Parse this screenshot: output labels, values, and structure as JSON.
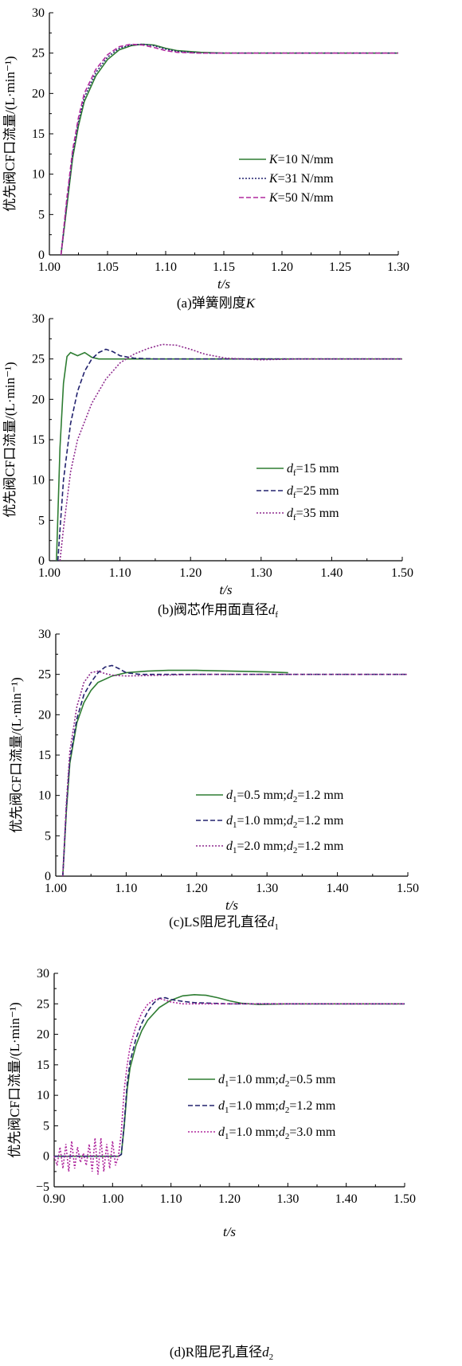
{
  "chart_data": [
    {
      "type": "line",
      "caption": "(a)弹簧刚度K",
      "xlabel": "t/s",
      "ylabel": "优先阀CF口流量/(L·min⁻¹)",
      "xlim": [
        1.0,
        1.3
      ],
      "ylim": [
        0,
        30
      ],
      "xticks": [
        "1.00",
        "1.05",
        "1.10",
        "1.15",
        "1.20",
        "1.25",
        "1.30"
      ],
      "yticks": [
        "0",
        "5",
        "10",
        "15",
        "20",
        "25",
        "30"
      ],
      "legend_position": "center-right",
      "series": [
        {
          "name": "K=10 N/mm",
          "color": "#2e7d32",
          "style": "solid",
          "x": [
            1.01,
            1.015,
            1.02,
            1.025,
            1.03,
            1.04,
            1.05,
            1.06,
            1.07,
            1.08,
            1.09,
            1.1,
            1.11,
            1.13,
            1.15,
            1.2,
            1.3
          ],
          "y": [
            0,
            6,
            12,
            16,
            19,
            22.2,
            24.2,
            25.4,
            25.9,
            26.1,
            26.0,
            25.6,
            25.3,
            25.1,
            25.0,
            25.0,
            25.0
          ]
        },
        {
          "name": "K=31 N/mm",
          "color": "#22226e",
          "style": "dotted",
          "x": [
            1.01,
            1.015,
            1.02,
            1.025,
            1.03,
            1.04,
            1.05,
            1.06,
            1.07,
            1.08,
            1.09,
            1.1,
            1.11,
            1.13,
            1.15,
            1.2,
            1.3
          ],
          "y": [
            0,
            6.5,
            12.5,
            16.5,
            19.5,
            22.6,
            24.5,
            25.6,
            26.0,
            26.1,
            25.9,
            25.5,
            25.2,
            25.0,
            25.0,
            25.0,
            25.0
          ]
        },
        {
          "name": "K=50 N/mm",
          "color": "#b0299e",
          "style": "dashed",
          "x": [
            1.01,
            1.015,
            1.02,
            1.025,
            1.03,
            1.04,
            1.05,
            1.06,
            1.07,
            1.08,
            1.09,
            1.1,
            1.11,
            1.13,
            1.15,
            1.2,
            1.3
          ],
          "y": [
            0,
            7,
            13,
            17,
            20,
            23,
            24.8,
            25.8,
            26.1,
            26.0,
            25.7,
            25.3,
            25.1,
            25.0,
            25.0,
            25.0,
            25.0
          ]
        }
      ]
    },
    {
      "type": "line",
      "caption": "(b)阀芯作用面直径df",
      "xlabel": "t/s",
      "ylabel": "优先阀CF口流量/(L·min⁻¹)",
      "xlim": [
        1.0,
        1.5
      ],
      "ylim": [
        0,
        30
      ],
      "xticks": [
        "1.00",
        "1.10",
        "1.20",
        "1.30",
        "1.40",
        "1.50"
      ],
      "yticks": [
        "0",
        "5",
        "10",
        "15",
        "20",
        "25",
        "30"
      ],
      "legend_position": "center-right",
      "series": [
        {
          "name": "df=15 mm",
          "color": "#2e7d32",
          "style": "solid",
          "x": [
            1.01,
            1.015,
            1.02,
            1.025,
            1.03,
            1.04,
            1.05,
            1.06,
            1.07,
            1.1,
            1.2,
            1.5
          ],
          "y": [
            0,
            14,
            22,
            25.3,
            25.8,
            25.4,
            25.8,
            25.2,
            25.0,
            25.0,
            25.0,
            25.0
          ]
        },
        {
          "name": "df=25 mm",
          "color": "#22226e",
          "style": "dashed",
          "x": [
            1.012,
            1.02,
            1.03,
            1.04,
            1.05,
            1.06,
            1.07,
            1.08,
            1.09,
            1.1,
            1.12,
            1.15,
            1.2,
            1.5
          ],
          "y": [
            0,
            10,
            17,
            21,
            23.5,
            25,
            25.8,
            26.2,
            25.9,
            25.4,
            25.1,
            25.0,
            25.0,
            25.0
          ]
        },
        {
          "name": "df=35 mm",
          "color": "#8e2a8e",
          "style": "dotted",
          "x": [
            1.015,
            1.02,
            1.03,
            1.04,
            1.06,
            1.08,
            1.1,
            1.12,
            1.14,
            1.16,
            1.18,
            1.2,
            1.22,
            1.25,
            1.3,
            1.35,
            1.5
          ],
          "y": [
            0,
            4,
            11,
            15,
            19.5,
            22.5,
            24.5,
            25.6,
            26.3,
            26.8,
            26.7,
            26.2,
            25.6,
            25.1,
            24.9,
            25.0,
            25.0
          ]
        }
      ]
    },
    {
      "type": "line",
      "caption": "(c)LS阻尼孔直径d1",
      "xlabel": "t/s",
      "ylabel": "优先阀CF口流量/(L·min⁻¹)",
      "xlim": [
        1.0,
        1.5
      ],
      "ylim": [
        0,
        30
      ],
      "xticks": [
        "1.00",
        "1.10",
        "1.20",
        "1.30",
        "1.40",
        "1.50"
      ],
      "yticks": [
        "0",
        "5",
        "10",
        "15",
        "20",
        "25",
        "30"
      ],
      "legend_position": "bottom-right",
      "series": [
        {
          "name": "d1=0.5 mm;d2=1.2 mm",
          "color": "#2e7d32",
          "style": "solid",
          "x": [
            1.01,
            1.015,
            1.02,
            1.03,
            1.04,
            1.05,
            1.06,
            1.08,
            1.1,
            1.13,
            1.16,
            1.2,
            1.25,
            1.3,
            1.33
          ],
          "y": [
            0,
            8,
            14,
            19,
            21.5,
            23,
            24,
            24.8,
            25.2,
            25.4,
            25.5,
            25.5,
            25.4,
            25.3,
            25.2
          ]
        },
        {
          "name": "d1=1.0 mm;d2=1.2 mm",
          "color": "#22226e",
          "style": "dashed",
          "x": [
            1.01,
            1.015,
            1.02,
            1.03,
            1.04,
            1.05,
            1.06,
            1.07,
            1.08,
            1.09,
            1.1,
            1.12,
            1.15,
            1.2,
            1.5
          ],
          "y": [
            0,
            8.5,
            14.5,
            19.5,
            22.5,
            24,
            25.2,
            25.9,
            26.1,
            25.7,
            25.2,
            25.0,
            25.0,
            25.0,
            25.0
          ]
        },
        {
          "name": "d1=2.0 mm;d2=1.2 mm",
          "color": "#8e2a8e",
          "style": "dotted",
          "x": [
            1.01,
            1.015,
            1.02,
            1.03,
            1.04,
            1.05,
            1.06,
            1.07,
            1.08,
            1.1,
            1.15,
            1.2,
            1.5
          ],
          "y": [
            0,
            9,
            15.5,
            21,
            24,
            25.2,
            25.4,
            25.1,
            24.9,
            24.8,
            24.9,
            25.0,
            25.0
          ]
        }
      ]
    },
    {
      "type": "line",
      "caption": "(d)R阻尼孔直径d2",
      "xlabel": "t/s",
      "ylabel": "优先阀CF口流量/(L·min⁻¹)",
      "xlim": [
        0.9,
        1.5
      ],
      "ylim": [
        -5,
        30
      ],
      "xticks": [
        "0.90",
        "1.00",
        "1.10",
        "1.20",
        "1.30",
        "1.40",
        "1.50"
      ],
      "yticks": [
        "−5",
        "0",
        "5",
        "10",
        "15",
        "20",
        "25",
        "30"
      ],
      "legend_position": "center-right",
      "series": [
        {
          "name": "d1=1.0 mm;d2=0.5 mm",
          "color": "#2e7d32",
          "style": "solid",
          "x": [
            0.9,
            1.01,
            1.015,
            1.02,
            1.025,
            1.03,
            1.04,
            1.05,
            1.06,
            1.08,
            1.1,
            1.12,
            1.14,
            1.16,
            1.18,
            1.2,
            1.22,
            1.25,
            1.3,
            1.5
          ],
          "y": [
            0,
            0,
            0.3,
            5,
            11,
            14.5,
            18.2,
            20.6,
            22.3,
            24.4,
            25.6,
            26.3,
            26.5,
            26.4,
            26.0,
            25.5,
            25.1,
            24.9,
            25.0,
            25.0
          ]
        },
        {
          "name": "d1=1.0 mm;d2=1.2 mm",
          "color": "#22226e",
          "style": "dashed",
          "x": [
            0.9,
            1.01,
            1.015,
            1.02,
            1.025,
            1.03,
            1.04,
            1.05,
            1.06,
            1.07,
            1.08,
            1.09,
            1.1,
            1.12,
            1.14,
            1.2,
            1.5
          ],
          "y": [
            0,
            0,
            0.3,
            5.5,
            12,
            15.5,
            19.3,
            21.8,
            23.7,
            25.1,
            25.9,
            26.0,
            25.7,
            25.4,
            25.2,
            25.0,
            25.0
          ]
        },
        {
          "name": "d1=1.0 mm;d2=3.0 mm",
          "color": "#b0299e",
          "style": "dotted",
          "x": [
            0.9,
            0.905,
            0.91,
            0.915,
            0.92,
            0.925,
            0.93,
            0.935,
            0.94,
            0.945,
            0.95,
            0.955,
            0.96,
            0.965,
            0.97,
            0.975,
            0.98,
            0.985,
            0.99,
            0.995,
            1.0,
            1.005,
            1.01,
            1.015,
            1.02,
            1.025,
            1.03,
            1.04,
            1.05,
            1.06,
            1.07,
            1.08,
            1.09,
            1.1,
            1.12,
            1.15,
            1.2,
            1.5
          ],
          "y": [
            0,
            -1.5,
            1.5,
            -2,
            2,
            -2.5,
            2.5,
            -2,
            1.5,
            -1,
            0.5,
            -1.5,
            2,
            -2.5,
            3,
            -3,
            3,
            -2.5,
            2,
            -2,
            2.5,
            -1.5,
            0,
            4,
            11,
            15,
            18,
            21.3,
            23.5,
            24.9,
            25.6,
            25.9,
            25.6,
            25.3,
            25.0,
            25.0,
            25.0,
            25.0
          ]
        }
      ]
    }
  ]
}
